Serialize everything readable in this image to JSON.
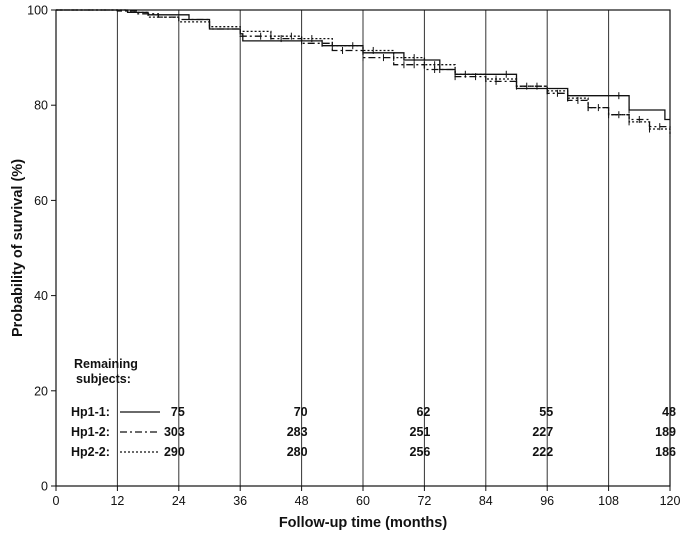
{
  "chart_data": {
    "type": "line",
    "xlabel": "Follow-up time (months)",
    "ylabel": "Probability of survival (%)",
    "xlim": [
      0,
      120
    ],
    "ylim": [
      0,
      100
    ],
    "xticks": [
      "0",
      "12",
      "24",
      "36",
      "48",
      "60",
      "72",
      "84",
      "96",
      "108",
      "120"
    ],
    "yticks": [
      "0",
      "20",
      "40",
      "60",
      "80",
      "100"
    ],
    "grid": "vertical lines at every x tick",
    "series": [
      {
        "name": "Hp1-1",
        "style": "solid",
        "points": [
          [
            0,
            100
          ],
          [
            12,
            100
          ],
          [
            14,
            99.5
          ],
          [
            18,
            99
          ],
          [
            24,
            99
          ],
          [
            26,
            98
          ],
          [
            30,
            96
          ],
          [
            36,
            95
          ],
          [
            36.5,
            93.5
          ],
          [
            48,
            93.5
          ],
          [
            52,
            92.5
          ],
          [
            58,
            92.5
          ],
          [
            60,
            91
          ],
          [
            66,
            91
          ],
          [
            68,
            89.5
          ],
          [
            72,
            89.5
          ],
          [
            75,
            87.5
          ],
          [
            78,
            86.5
          ],
          [
            88,
            86.5
          ],
          [
            90,
            83.5
          ],
          [
            96,
            83.5
          ],
          [
            100,
            82
          ],
          [
            110,
            82
          ],
          [
            112,
            79
          ],
          [
            118,
            79
          ],
          [
            119,
            77
          ],
          [
            120,
            77
          ]
        ],
        "censored_x": [
          48,
          75,
          88,
          100,
          110,
          112
        ]
      },
      {
        "name": "Hp1-2",
        "style": "dash-dot",
        "points": [
          [
            0,
            100
          ],
          [
            8,
            100
          ],
          [
            12,
            99.8
          ],
          [
            16,
            99.2
          ],
          [
            20,
            98.5
          ],
          [
            24,
            98
          ],
          [
            30,
            96
          ],
          [
            36,
            94.5
          ],
          [
            42,
            94
          ],
          [
            48,
            93
          ],
          [
            54,
            91.5
          ],
          [
            60,
            90
          ],
          [
            66,
            88.5
          ],
          [
            72,
            87.5
          ],
          [
            78,
            86
          ],
          [
            84,
            85
          ],
          [
            90,
            84
          ],
          [
            96,
            82.5
          ],
          [
            100,
            81
          ],
          [
            104,
            79.5
          ],
          [
            108,
            78
          ],
          [
            112,
            77
          ],
          [
            116,
            75.5
          ],
          [
            120,
            74.5
          ]
        ],
        "censored_x": [
          40,
          44,
          52,
          56,
          60,
          64,
          68,
          70,
          74,
          78,
          82,
          86,
          90,
          94,
          98,
          102,
          104,
          106,
          110,
          114,
          118
        ]
      },
      {
        "name": "Hp2-2",
        "style": "dotted",
        "points": [
          [
            0,
            100
          ],
          [
            10,
            100
          ],
          [
            14,
            99.5
          ],
          [
            18,
            98.5
          ],
          [
            24,
            97.5
          ],
          [
            30,
            96.5
          ],
          [
            36,
            95.5
          ],
          [
            42,
            94.5
          ],
          [
            48,
            94
          ],
          [
            54,
            92.5
          ],
          [
            60,
            91.5
          ],
          [
            66,
            90
          ],
          [
            72,
            88.5
          ],
          [
            78,
            86.5
          ],
          [
            84,
            85.5
          ],
          [
            90,
            84
          ],
          [
            96,
            83
          ],
          [
            100,
            81.5
          ],
          [
            104,
            79.5
          ],
          [
            108,
            78
          ],
          [
            112,
            76.5
          ],
          [
            116,
            75
          ],
          [
            120,
            73.5
          ]
        ],
        "censored_x": [
          42,
          46,
          50,
          54,
          58,
          62,
          66,
          70,
          74,
          80,
          86,
          92,
          96,
          100,
          104,
          108,
          112,
          116
        ]
      }
    ],
    "risk_table": {
      "title_line1": "Remaining",
      "title_line2": "subjects:",
      "times": [
        24,
        48,
        72,
        96,
        120
      ],
      "rows": [
        {
          "label": "Hp1-1:",
          "style": "solid",
          "counts": [
            "75",
            "70",
            "62",
            "55",
            "48"
          ]
        },
        {
          "label": "Hp1-2:",
          "style": "dash-dot",
          "counts": [
            "303",
            "283",
            "251",
            "227",
            "189"
          ]
        },
        {
          "label": "Hp2-2:",
          "style": "dotted",
          "counts": [
            "290",
            "280",
            "256",
            "222",
            "186"
          ]
        }
      ]
    }
  }
}
